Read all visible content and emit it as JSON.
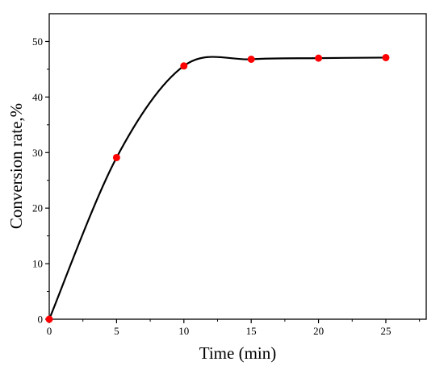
{
  "chart_data": {
    "type": "line",
    "xlabel": "Time (min)",
    "ylabel": "Conversion rate,%",
    "xlim": [
      0,
      28
    ],
    "ylim": [
      0,
      55
    ],
    "x_ticks": [
      0,
      5,
      10,
      15,
      20,
      25
    ],
    "y_ticks": [
      0,
      10,
      20,
      30,
      40,
      50
    ],
    "x_tick_labels": [
      "0",
      "5",
      "10",
      "15",
      "20",
      "25"
    ],
    "y_tick_labels": [
      "0",
      "10",
      "20",
      "30",
      "40",
      "50"
    ],
    "grid": false,
    "legend": "none",
    "series": [
      {
        "x": [
          0,
          5,
          10,
          15,
          20,
          25
        ],
        "y": [
          0,
          29.1,
          45.6,
          46.8,
          47.0,
          47.1
        ],
        "marker_color": "#ff0000",
        "line_color": "#000000",
        "smooth": true
      }
    ]
  }
}
